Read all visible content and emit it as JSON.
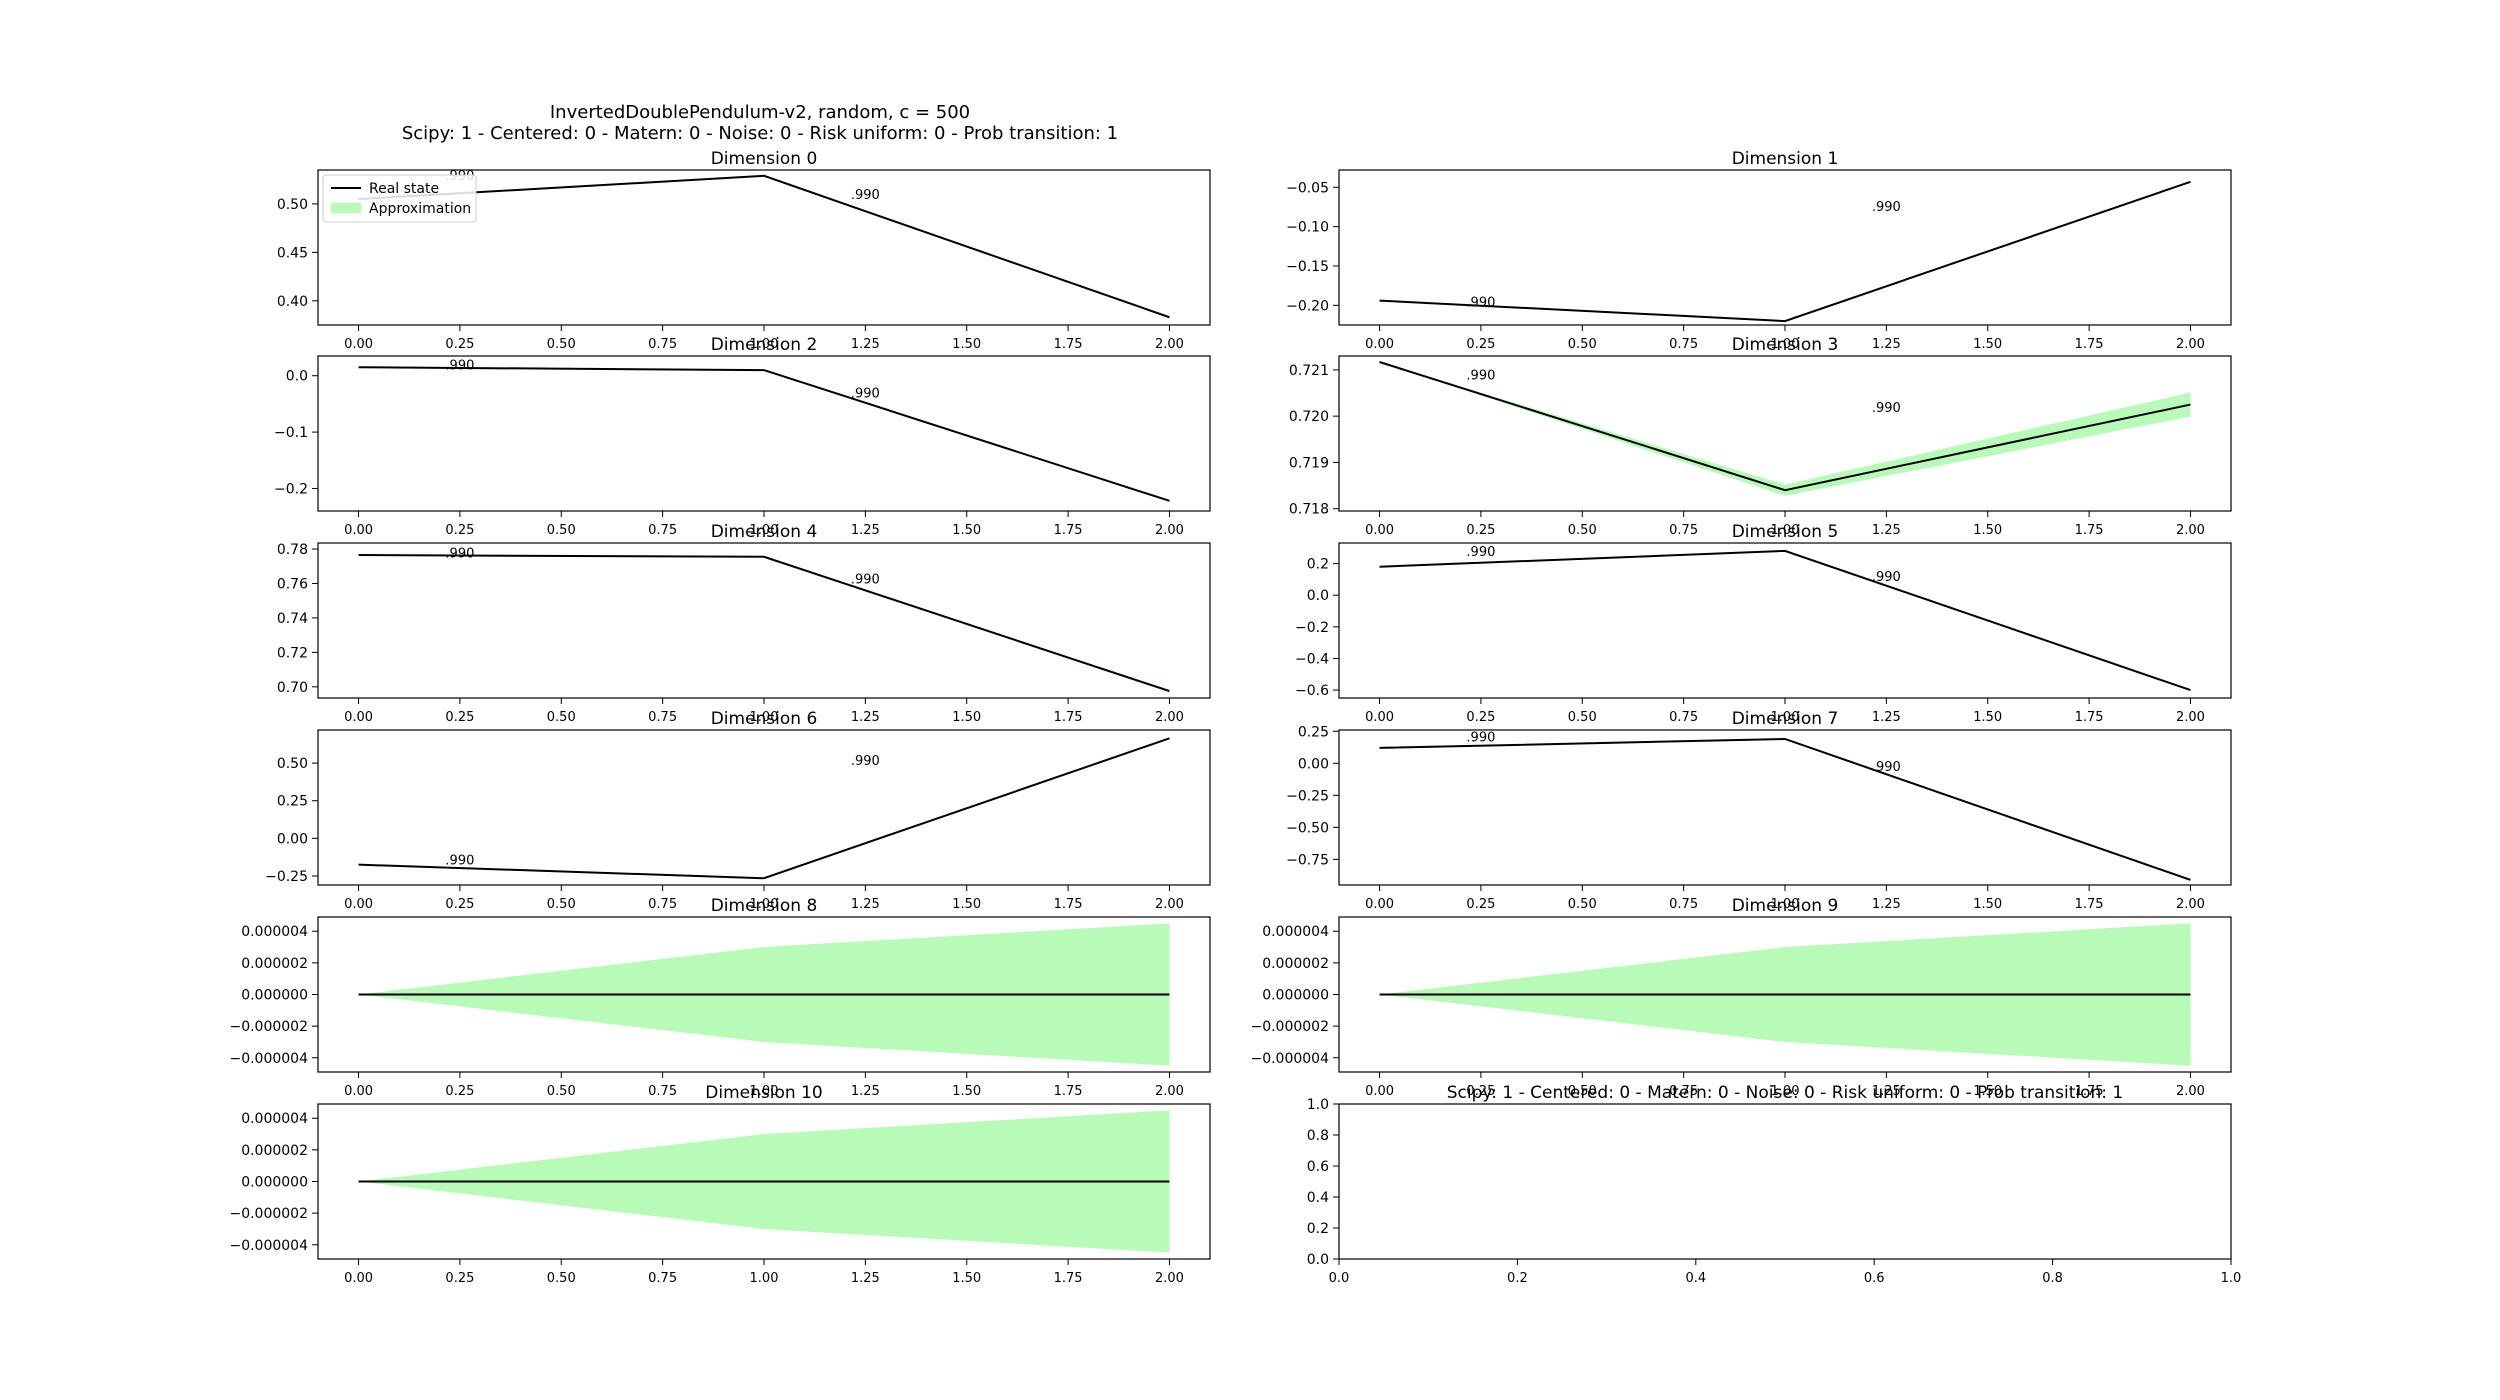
{
  "figure": {
    "title_line1": "InvertedDoublePendulum-v2, random, c = 500",
    "title_line2": "Scipy: 1 - Centered: 0 - Matern: 0 - Noise: 0 - Risk uniform: 0 - Prob transition: 1"
  },
  "colors": {
    "real_state": "#000000",
    "approximation": "#b8fbb8"
  },
  "chart_data": [
    {
      "type": "line",
      "title": "Dimension 0",
      "x": [
        0,
        1,
        2
      ],
      "y": [
        0.505,
        0.529,
        0.383
      ],
      "band": [
        0.0,
        0.0,
        0.0
      ],
      "ylim": [
        0.375,
        0.535
      ],
      "yticks": [
        0.4,
        0.45,
        0.5
      ],
      "ytick_labels": [
        "0.40",
        "0.45",
        "0.50"
      ],
      "xlim": [
        -0.1,
        2.1
      ],
      "xticks": [
        0,
        0.25,
        0.5,
        0.75,
        1.0,
        1.25,
        1.5,
        1.75,
        2.0
      ],
      "xtick_labels": [
        "0.00",
        "0.25",
        "0.50",
        "0.75",
        "1.00",
        "1.25",
        "1.50",
        "1.75",
        "2.00"
      ],
      "annotations": [
        {
          "x": 0.25,
          "y": 0.53,
          "text": ".990"
        },
        {
          "x": 1.25,
          "y": 0.51,
          "text": ".990"
        }
      ],
      "legend": {
        "placement": "top-left",
        "entries": [
          "Real state",
          "Approximation"
        ]
      }
    },
    {
      "type": "line",
      "title": "Dimension 1",
      "x": [
        0,
        1,
        2
      ],
      "y": [
        -0.194,
        -0.22,
        -0.043
      ],
      "band": [
        0.0,
        0.0,
        0.0
      ],
      "ylim": [
        -0.225,
        -0.028
      ],
      "yticks": [
        -0.2,
        -0.15,
        -0.1,
        -0.05
      ],
      "ytick_labels": [
        "−0.20",
        "−0.15",
        "−0.10",
        "−0.05"
      ],
      "xlim": [
        -0.1,
        2.1
      ],
      "xticks": [
        0,
        0.25,
        0.5,
        0.75,
        1.0,
        1.25,
        1.5,
        1.75,
        2.0
      ],
      "xtick_labels": [
        "0.00",
        "0.25",
        "0.50",
        "0.75",
        "1.00",
        "1.25",
        "1.50",
        "1.75",
        "2.00"
      ],
      "annotations": [
        {
          "x": 0.25,
          "y": -0.195,
          "text": ".990"
        },
        {
          "x": 1.25,
          "y": -0.074,
          "text": ".990"
        }
      ]
    },
    {
      "type": "line",
      "title": "Dimension 2",
      "x": [
        0,
        1,
        2
      ],
      "y": [
        0.015,
        0.01,
        -0.222
      ],
      "band": [
        0.0,
        0.0,
        0.0
      ],
      "ylim": [
        -0.24,
        0.035
      ],
      "yticks": [
        -0.2,
        -0.1,
        0.0
      ],
      "ytick_labels": [
        "−0.2",
        "−0.1",
        "0.0"
      ],
      "xlim": [
        -0.1,
        2.1
      ],
      "xticks": [
        0,
        0.25,
        0.5,
        0.75,
        1.0,
        1.25,
        1.5,
        1.75,
        2.0
      ],
      "xtick_labels": [
        "0.00",
        "0.25",
        "0.50",
        "0.75",
        "1.00",
        "1.25",
        "1.50",
        "1.75",
        "2.00"
      ],
      "annotations": [
        {
          "x": 0.25,
          "y": 0.02,
          "text": ".990"
        },
        {
          "x": 1.25,
          "y": -0.03,
          "text": ".990"
        }
      ]
    },
    {
      "type": "line",
      "title": "Dimension 3",
      "x": [
        0,
        1,
        2
      ],
      "y": [
        0.72117,
        0.7184,
        0.72025
      ],
      "band": [
        0.0,
        0.00012,
        0.00026
      ],
      "ylim": [
        0.71795,
        0.7213
      ],
      "yticks": [
        0.718,
        0.719,
        0.72,
        0.721
      ],
      "ytick_labels": [
        "0.718",
        "0.719",
        "0.720",
        "0.721"
      ],
      "xlim": [
        -0.1,
        2.1
      ],
      "xticks": [
        0,
        0.25,
        0.5,
        0.75,
        1.0,
        1.25,
        1.5,
        1.75,
        2.0
      ],
      "xtick_labels": [
        "0.00",
        "0.25",
        "0.50",
        "0.75",
        "1.00",
        "1.25",
        "1.50",
        "1.75",
        "2.00"
      ],
      "annotations": [
        {
          "x": 0.25,
          "y": 0.7209,
          "text": ".990"
        },
        {
          "x": 1.25,
          "y": 0.7202,
          "text": ".990"
        }
      ]
    },
    {
      "type": "line",
      "title": "Dimension 4",
      "x": [
        0,
        1,
        2
      ],
      "y": [
        0.7765,
        0.7755,
        0.6975
      ],
      "band": [
        0.0,
        0.0003,
        0.0008
      ],
      "ylim": [
        0.6935,
        0.7835
      ],
      "yticks": [
        0.7,
        0.72,
        0.74,
        0.76,
        0.78
      ],
      "ytick_labels": [
        "0.70",
        "0.72",
        "0.74",
        "0.76",
        "0.78"
      ],
      "xlim": [
        -0.1,
        2.1
      ],
      "xticks": [
        0,
        0.25,
        0.5,
        0.75,
        1.0,
        1.25,
        1.5,
        1.75,
        2.0
      ],
      "xtick_labels": [
        "0.00",
        "0.25",
        "0.50",
        "0.75",
        "1.00",
        "1.25",
        "1.50",
        "1.75",
        "2.00"
      ],
      "annotations": [
        {
          "x": 0.25,
          "y": 0.778,
          "text": ".990"
        },
        {
          "x": 1.25,
          "y": 0.763,
          "text": ".990"
        }
      ]
    },
    {
      "type": "line",
      "title": "Dimension 5",
      "x": [
        0,
        1,
        2
      ],
      "y": [
        0.18,
        0.28,
        -0.6
      ],
      "band": [
        0.0,
        0.0,
        0.0
      ],
      "ylim": [
        -0.65,
        0.33
      ],
      "yticks": [
        -0.6,
        -0.4,
        -0.2,
        0.0,
        0.2
      ],
      "ytick_labels": [
        "−0.6",
        "−0.4",
        "−0.2",
        "0.0",
        "0.2"
      ],
      "xlim": [
        -0.1,
        2.1
      ],
      "xticks": [
        0,
        0.25,
        0.5,
        0.75,
        1.0,
        1.25,
        1.5,
        1.75,
        2.0
      ],
      "xtick_labels": [
        "0.00",
        "0.25",
        "0.50",
        "0.75",
        "1.00",
        "1.25",
        "1.50",
        "1.75",
        "2.00"
      ],
      "annotations": [
        {
          "x": 0.25,
          "y": 0.28,
          "text": ".990"
        },
        {
          "x": 1.25,
          "y": 0.12,
          "text": ".990"
        }
      ]
    },
    {
      "type": "line",
      "title": "Dimension 6",
      "x": [
        0,
        1,
        2
      ],
      "y": [
        -0.175,
        -0.265,
        0.665
      ],
      "band": [
        0.0,
        0.0,
        0.0
      ],
      "ylim": [
        -0.31,
        0.72
      ],
      "yticks": [
        -0.25,
        0.0,
        0.25,
        0.5
      ],
      "ytick_labels": [
        "−0.25",
        "0.00",
        "0.25",
        "0.50"
      ],
      "xlim": [
        -0.1,
        2.1
      ],
      "xticks": [
        0,
        0.25,
        0.5,
        0.75,
        1.0,
        1.25,
        1.5,
        1.75,
        2.0
      ],
      "xtick_labels": [
        "0.00",
        "0.25",
        "0.50",
        "0.75",
        "1.00",
        "1.25",
        "1.50",
        "1.75",
        "2.00"
      ],
      "annotations": [
        {
          "x": 0.25,
          "y": -0.14,
          "text": ".990"
        },
        {
          "x": 1.25,
          "y": 0.52,
          "text": ".990"
        }
      ]
    },
    {
      "type": "line",
      "title": "Dimension 7",
      "x": [
        0,
        1,
        2
      ],
      "y": [
        0.12,
        0.19,
        -0.91
      ],
      "band": [
        0.0,
        0.0,
        0.0
      ],
      "ylim": [
        -0.95,
        0.26
      ],
      "yticks": [
        -0.75,
        -0.5,
        -0.25,
        0.0,
        0.25
      ],
      "ytick_labels": [
        "−0.75",
        "−0.50",
        "−0.25",
        "0.00",
        "0.25"
      ],
      "xlim": [
        -0.1,
        2.1
      ],
      "xticks": [
        0,
        0.25,
        0.5,
        0.75,
        1.0,
        1.25,
        1.5,
        1.75,
        2.0
      ],
      "xtick_labels": [
        "0.00",
        "0.25",
        "0.50",
        "0.75",
        "1.00",
        "1.25",
        "1.50",
        "1.75",
        "2.00"
      ],
      "annotations": [
        {
          "x": 0.25,
          "y": 0.21,
          "text": ".990"
        },
        {
          "x": 1.25,
          "y": -0.02,
          "text": ".990"
        }
      ]
    },
    {
      "type": "area",
      "title": "Dimension 8",
      "x": [
        0,
        1,
        2
      ],
      "y": [
        0.0,
        0.0,
        0.0
      ],
      "band": [
        0.0,
        3e-06,
        4.5e-06
      ],
      "ylim": [
        -4.9e-06,
        4.9e-06
      ],
      "yticks": [
        -4e-06,
        -2e-06,
        0.0,
        2e-06,
        4e-06
      ],
      "ytick_labels": [
        "−0.000004",
        "−0.000002",
        "0.000000",
        "0.000002",
        "0.000004"
      ],
      "xlim": [
        -0.1,
        2.1
      ],
      "xticks": [
        0,
        0.25,
        0.5,
        0.75,
        1.0,
        1.25,
        1.5,
        1.75,
        2.0
      ],
      "xtick_labels": [
        "0.00",
        "0.25",
        "0.50",
        "0.75",
        "1.00",
        "1.25",
        "1.50",
        "1.75",
        "2.00"
      ],
      "annotations": []
    },
    {
      "type": "area",
      "title": "Dimension 9",
      "x": [
        0,
        1,
        2
      ],
      "y": [
        0.0,
        0.0,
        0.0
      ],
      "band": [
        0.0,
        3e-06,
        4.5e-06
      ],
      "ylim": [
        -4.9e-06,
        4.9e-06
      ],
      "yticks": [
        -4e-06,
        -2e-06,
        0.0,
        2e-06,
        4e-06
      ],
      "ytick_labels": [
        "−0.000004",
        "−0.000002",
        "0.000000",
        "0.000002",
        "0.000004"
      ],
      "xlim": [
        -0.1,
        2.1
      ],
      "xticks": [
        0,
        0.25,
        0.5,
        0.75,
        1.0,
        1.25,
        1.5,
        1.75,
        2.0
      ],
      "xtick_labels": [
        "0.00",
        "0.25",
        "0.50",
        "0.75",
        "1.00",
        "1.25",
        "1.50",
        "1.75",
        "2.00"
      ],
      "annotations": []
    },
    {
      "type": "area",
      "title": "Dimension 10",
      "x": [
        0,
        1,
        2
      ],
      "y": [
        0.0,
        0.0,
        0.0
      ],
      "band": [
        0.0,
        3e-06,
        4.5e-06
      ],
      "ylim": [
        -4.9e-06,
        4.9e-06
      ],
      "yticks": [
        -4e-06,
        -2e-06,
        0.0,
        2e-06,
        4e-06
      ],
      "ytick_labels": [
        "−0.000004",
        "−0.000002",
        "0.000000",
        "0.000002",
        "0.000004"
      ],
      "xlim": [
        -0.1,
        2.1
      ],
      "xticks": [
        0,
        0.25,
        0.5,
        0.75,
        1.0,
        1.25,
        1.5,
        1.75,
        2.0
      ],
      "xtick_labels": [
        "0.00",
        "0.25",
        "0.50",
        "0.75",
        "1.00",
        "1.25",
        "1.50",
        "1.75",
        "2.00"
      ],
      "annotations": []
    },
    {
      "type": "line",
      "title": "Scipy: 1 - Centered: 0 - Matern: 0 - Noise: 0 - Risk uniform: 0 - Prob transition: 1",
      "x": [],
      "y": [],
      "band": [],
      "ylim": [
        0.0,
        1.0
      ],
      "yticks": [
        0.0,
        0.2,
        0.4,
        0.6,
        0.8,
        1.0
      ],
      "ytick_labels": [
        "0.0",
        "0.2",
        "0.4",
        "0.6",
        "0.8",
        "1.0"
      ],
      "xlim": [
        0.0,
        1.0
      ],
      "xticks": [
        0.0,
        0.2,
        0.4,
        0.6,
        0.8,
        1.0
      ],
      "xtick_labels": [
        "0.0",
        "0.2",
        "0.4",
        "0.6",
        "0.8",
        "1.0"
      ],
      "annotations": []
    }
  ]
}
